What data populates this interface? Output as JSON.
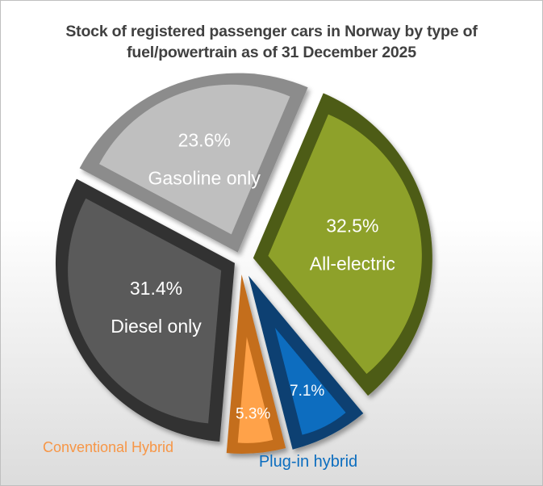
{
  "chart_data": {
    "type": "pie",
    "style": "3d-exploded",
    "title_line1": "Stock of registered passenger cars in Norway by type of",
    "title_line2": "fuel/powertrain as of 31 December 2025",
    "slices": [
      {
        "name": "Gasoline only",
        "value": 23.6,
        "value_label": "23.6%",
        "color": "#bfbfbf",
        "dark": "#8c8c8c"
      },
      {
        "name": "All-electric",
        "value": 32.5,
        "value_label": "32.5%",
        "color": "#8ea12a",
        "dark": "#4e5b12"
      },
      {
        "name": "Plug-in hybrid",
        "value": 7.1,
        "value_label": "7.1%",
        "color": "#0b6dbf",
        "dark": "#073f72"
      },
      {
        "name": "Conventional Hybrid",
        "value": 5.3,
        "value_label": "5.3%",
        "color": "#ffa24a",
        "dark": "#c46e1e"
      },
      {
        "name": "Diesel only",
        "value": 31.4,
        "value_label": "31.4%",
        "color": "#5a5a5a",
        "dark": "#333333"
      }
    ],
    "outside_label_colors": {
      "Plug-in hybrid": "#0b6dbf",
      "Conventional Hybrid": "#f79646"
    }
  }
}
